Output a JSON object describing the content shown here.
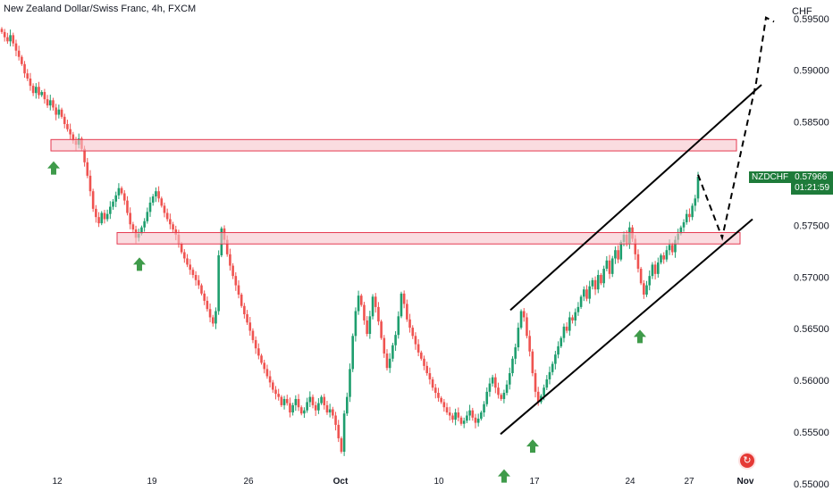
{
  "header": {
    "title": "New Zealand Dollar/Swiss Franc, 4h, FXCM"
  },
  "price_axis": {
    "currency": "CHF",
    "levels": [
      "0.59500",
      "0.59000",
      "0.58500",
      "0.57500",
      "0.57000",
      "0.56500",
      "0.56000",
      "0.55500",
      "0.55000"
    ]
  },
  "time_axis": {
    "labels": [
      {
        "text": "12",
        "bold": false
      },
      {
        "text": "19",
        "bold": false
      },
      {
        "text": "26",
        "bold": false
      },
      {
        "text": "Oct",
        "bold": true
      },
      {
        "text": "10",
        "bold": false
      },
      {
        "text": "17",
        "bold": false
      },
      {
        "text": "24",
        "bold": false
      },
      {
        "text": "27",
        "bold": false
      },
      {
        "text": "Nov",
        "bold": true
      }
    ]
  },
  "price_badge": {
    "symbol": "NZDCHF",
    "price": "0.57966",
    "countdown": "01:21:59"
  },
  "colors": {
    "up": "#1e9e6e",
    "down": "#ef5350",
    "zone_fill": "#f7c5cc",
    "zone_border": "#e53950",
    "arrow": "#3f9b4a",
    "badge": "#1e7b3a"
  },
  "reset_icon": "reset-chart-icon",
  "chart_data": {
    "type": "candlestick",
    "symbol": "NZDCHF",
    "timeframe": "4h",
    "ylim": [
      0.5493,
      0.5968
    ],
    "closes": [
      0.5937,
      0.5932,
      0.5928,
      0.5934,
      0.5926,
      0.5919,
      0.5913,
      0.5906,
      0.5897,
      0.5892,
      0.5885,
      0.5878,
      0.5884,
      0.5876,
      0.5879,
      0.5872,
      0.5866,
      0.5871,
      0.5864,
      0.5857,
      0.5862,
      0.5855,
      0.5848,
      0.5843,
      0.5838,
      0.5832,
      0.5828,
      0.5834,
      0.5824,
      0.5811,
      0.5798,
      0.5783,
      0.5766,
      0.5758,
      0.5752,
      0.5762,
      0.5756,
      0.5761,
      0.5768,
      0.5773,
      0.5779,
      0.5786,
      0.5781,
      0.5774,
      0.5762,
      0.5751,
      0.5746,
      0.5738,
      0.5742,
      0.5748,
      0.5754,
      0.5763,
      0.5772,
      0.5778,
      0.5783,
      0.5776,
      0.5769,
      0.5762,
      0.5756,
      0.5751,
      0.5746,
      0.5741,
      0.5732,
      0.5724,
      0.5718,
      0.5712,
      0.5707,
      0.5702,
      0.5697,
      0.5692,
      0.5684,
      0.5677,
      0.5669,
      0.5661,
      0.5655,
      0.5667,
      0.5721,
      0.5747,
      0.5736,
      0.5722,
      0.5711,
      0.5701,
      0.5692,
      0.5683,
      0.5672,
      0.5664,
      0.5656,
      0.5648,
      0.5639,
      0.5631,
      0.5624,
      0.5617,
      0.5611,
      0.5604,
      0.5598,
      0.5591,
      0.5587,
      0.5584,
      0.5576,
      0.5582,
      0.5578,
      0.5569,
      0.5576,
      0.5582,
      0.5574,
      0.5568,
      0.5571,
      0.5579,
      0.5584,
      0.5576,
      0.5571,
      0.5578,
      0.5584,
      0.5576,
      0.5569,
      0.5572,
      0.5566,
      0.5557,
      0.5544,
      0.5531,
      0.5568,
      0.5584,
      0.5611,
      0.5643,
      0.5667,
      0.5682,
      0.5673,
      0.5658,
      0.5645,
      0.5662,
      0.5681,
      0.5671,
      0.5657,
      0.5641,
      0.5626,
      0.5612,
      0.5621,
      0.5634,
      0.5644,
      0.5662,
      0.5684,
      0.5674,
      0.5659,
      0.5651,
      0.5643,
      0.5635,
      0.5627,
      0.5621,
      0.5614,
      0.5607,
      0.5601,
      0.5593,
      0.5588,
      0.5583,
      0.5579,
      0.5574,
      0.5569,
      0.5566,
      0.5562,
      0.5569,
      0.5564,
      0.5558,
      0.5561,
      0.5566,
      0.5571,
      0.5564,
      0.5559,
      0.5563,
      0.5569,
      0.5577,
      0.5589,
      0.5597,
      0.5603,
      0.5593,
      0.5586,
      0.5582,
      0.5588,
      0.5596,
      0.5607,
      0.5621,
      0.5632,
      0.5651,
      0.5667,
      0.5661,
      0.5643,
      0.5628,
      0.5607,
      0.5589,
      0.5579,
      0.5585,
      0.5593,
      0.5601,
      0.5608,
      0.5616,
      0.5625,
      0.5633,
      0.5641,
      0.5652,
      0.5648,
      0.5661,
      0.5658,
      0.5666,
      0.5671,
      0.5681,
      0.5688,
      0.5679,
      0.5691,
      0.5697,
      0.5688,
      0.5702,
      0.5694,
      0.5708,
      0.5716,
      0.5703,
      0.5718,
      0.5726,
      0.5717,
      0.5734,
      0.5741,
      0.5732,
      0.5748,
      0.5737,
      0.5722,
      0.5708,
      0.5694,
      0.5683,
      0.5692,
      0.5701,
      0.5712,
      0.5703,
      0.5714,
      0.5721,
      0.5717,
      0.5726,
      0.5731,
      0.5724,
      0.5736,
      0.5742,
      0.5748,
      0.5753,
      0.5761,
      0.5758,
      0.5769,
      0.5776,
      0.5797
    ]
  }
}
